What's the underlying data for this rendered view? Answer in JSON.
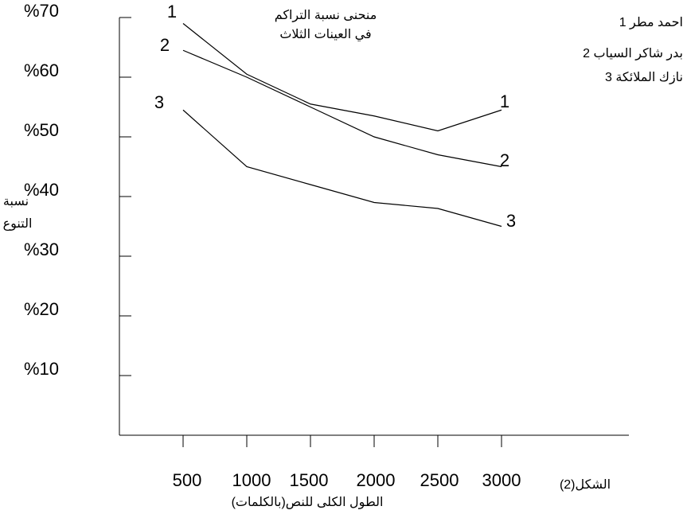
{
  "chart_data": {
    "type": "line",
    "title": [
      "منحنى نسبة التراكم",
      "في العينات الثلاث"
    ],
    "ylabel": [
      "نسبة",
      "التنوع"
    ],
    "xlabel": "الطول الكلى للنص(بالكلمات)",
    "figure_caption": "الشكل(2)",
    "x": [
      500,
      1000,
      1500,
      2000,
      2500,
      3000
    ],
    "ylim": [
      0,
      70
    ],
    "y_ticks": [
      10,
      20,
      30,
      40,
      50,
      60,
      70
    ],
    "y_tick_labels": [
      "%10",
      "%20",
      "%30",
      "%40",
      "%50",
      "%60",
      "%70"
    ],
    "x_tick_labels": [
      "500",
      "1000",
      "1500",
      "2000",
      "2500",
      "3000"
    ],
    "legend": [
      "1 احمد مطر",
      "2 بدر شاكر السياب",
      "3 نازك الملائكة"
    ],
    "series": [
      {
        "label": "1",
        "values": [
          69,
          60.5,
          55.5,
          53.5,
          51,
          54.5
        ]
      },
      {
        "label": "2",
        "values": [
          64.5,
          60,
          55,
          50,
          47,
          45
        ]
      },
      {
        "label": "3",
        "values": [
          54.5,
          45,
          42,
          39,
          38,
          35
        ]
      }
    ],
    "grid": false,
    "legend_position": "top-right"
  }
}
